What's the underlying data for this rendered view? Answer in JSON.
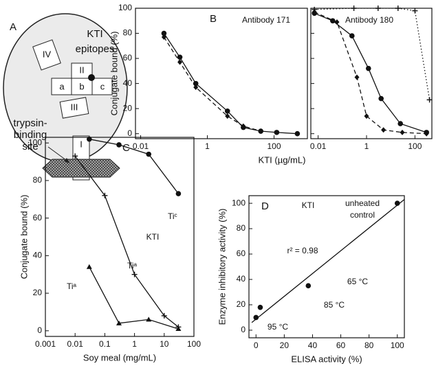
{
  "diagram": {
    "label": "A",
    "title": [
      "KTI",
      "epitopes"
    ],
    "regions": [
      "IV",
      "II",
      "a",
      "b",
      "c",
      "III",
      "I"
    ],
    "site": [
      "trypsin-",
      "binding",
      "site"
    ]
  },
  "chart_data": [
    {
      "type": "line",
      "panel_label": "B",
      "annotation": "Antibody 171",
      "ylabel": "Conjugate bound (%)",
      "xlabel": "KTI (µg/mL)",
      "log_x": true,
      "xlim": [
        0.007,
        1000
      ],
      "xticks": [
        0.01,
        1,
        100
      ],
      "ylim": [
        -4,
        100
      ],
      "yticks": [
        0,
        20,
        40,
        60,
        80,
        100
      ],
      "series": [
        {
          "marker": "circle",
          "dash": "solid",
          "color": "#111",
          "x": [
            0.05,
            0.15,
            0.45,
            4,
            12,
            40,
            120,
            500
          ],
          "values": [
            80,
            61,
            40,
            18,
            5,
            2,
            1,
            0
          ]
        },
        {
          "marker": "diamond",
          "dash": "dashed",
          "color": "#111",
          "x": [
            0.05,
            0.15,
            0.45,
            4,
            12,
            40
          ],
          "values": [
            77,
            57,
            37,
            14,
            6,
            2
          ]
        }
      ]
    },
    {
      "type": "line",
      "annotation": "Antibody 180",
      "log_x": true,
      "xlim": [
        0.005,
        500
      ],
      "xticks": [
        0.01,
        1,
        100
      ],
      "ylim": [
        -4,
        100
      ],
      "series": [
        {
          "marker": "circle",
          "dash": "solid",
          "color": "#111",
          "x": [
            0.007,
            0.04,
            0.25,
            1.2,
            4,
            25,
            300
          ],
          "values": [
            96,
            90,
            78,
            52,
            28,
            8,
            1
          ]
        },
        {
          "marker": "diamond",
          "dash": "dashed",
          "color": "#111",
          "x": [
            0.007,
            0.06,
            0.4,
            1,
            5,
            30,
            300
          ],
          "values": [
            97,
            89,
            45,
            14,
            3,
            1,
            0
          ]
        },
        {
          "marker": "plus",
          "dash": "dotted",
          "color": "#111",
          "x": [
            0.007,
            0.3,
            3,
            20,
            100,
            400
          ],
          "values": [
            99,
            100,
            100,
            100,
            98,
            27
          ]
        }
      ]
    },
    {
      "type": "line",
      "panel_label": "C",
      "ylabel": "Conjugate bound (%)",
      "xlabel": "Soy meal (mg/mL)",
      "log_x": true,
      "labels": [
        "KTI",
        "Tiᶜ",
        "Tiᵃ",
        "Tiᵃ"
      ],
      "xlim": [
        0.001,
        100
      ],
      "xticks": [
        0.001,
        0.01,
        0.1,
        1,
        10,
        100
      ],
      "ylim": [
        -3,
        103
      ],
      "yticks": [
        0,
        20,
        40,
        60,
        80,
        100
      ],
      "series": [
        {
          "marker": "circle",
          "dash": "solid",
          "color": "#111",
          "x": [
            0.03,
            0.3,
            3,
            30
          ],
          "values": [
            102,
            99,
            94,
            73
          ]
        },
        {
          "marker": "plus",
          "dash": "solid",
          "color": "#111",
          "x": [
            0.01,
            0.1,
            1,
            10,
            30
          ],
          "values": [
            93,
            72,
            30,
            8,
            2
          ]
        },
        {
          "marker": "triangle",
          "dash": "solid",
          "color": "#111",
          "x": [
            0.03,
            0.3,
            3,
            30
          ],
          "values": [
            34,
            4,
            6,
            1
          ]
        }
      ]
    },
    {
      "type": "scatter",
      "panel_label": "D",
      "ylabel": "Enzyme inhibitory activity (%)",
      "xlabel": "ELISA activity (%)",
      "labels": [
        "KTI",
        "unheated",
        "control",
        "r² = 0.98",
        "65 °C",
        "85 °C",
        "95 °C"
      ],
      "xlim": [
        -5,
        105
      ],
      "xticks": [
        0,
        20,
        40,
        60,
        80,
        100
      ],
      "ylim": [
        -6,
        106
      ],
      "yticks": [
        0,
        20,
        40,
        60,
        80,
        100
      ],
      "series": [
        {
          "marker": "circle",
          "dash": "none",
          "color": "#111",
          "x": [
            0,
            3,
            37,
            100
          ],
          "values": [
            10,
            18,
            35,
            100
          ]
        },
        {
          "marker": "none",
          "dash": "solid",
          "color": "#111",
          "x": [
            -3,
            105
          ],
          "values": [
            6,
            103
          ]
        }
      ]
    }
  ]
}
